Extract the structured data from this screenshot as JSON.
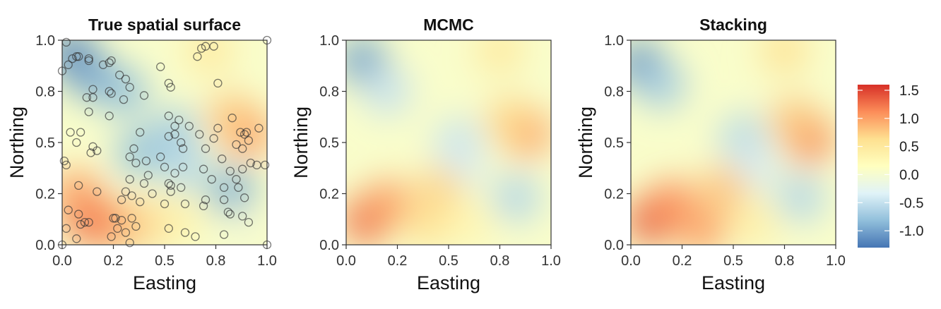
{
  "chart_data": [
    {
      "type": "heatmap",
      "id": "true",
      "title": "True spatial surface",
      "xlabel": "Easting",
      "ylabel": "Northing",
      "xlim": [
        0,
        1
      ],
      "ylim": [
        0,
        1
      ],
      "xticks": [
        "0.0",
        "0.2",
        "0.5",
        "0.8",
        "1.0"
      ],
      "yticks": [
        "0.0",
        "0.2",
        "0.5",
        "0.8",
        "1.0"
      ],
      "observed_locations": [
        [
          0.02,
          0.99
        ],
        [
          0.07,
          0.92
        ],
        [
          0.08,
          0.92
        ],
        [
          0.05,
          0.91
        ],
        [
          0.13,
          0.91
        ],
        [
          0.13,
          0.9
        ],
        [
          0.03,
          0.88
        ],
        [
          0.2,
          0.88
        ],
        [
          0.23,
          0.89
        ],
        [
          0.24,
          0.9
        ],
        [
          0.0,
          0.85
        ],
        [
          0.28,
          0.83
        ],
        [
          0.31,
          0.81
        ],
        [
          0.48,
          0.87
        ],
        [
          0.68,
          0.96
        ],
        [
          0.7,
          0.97
        ],
        [
          0.74,
          0.97
        ],
        [
          0.66,
          0.92
        ],
        [
          0.15,
          0.76
        ],
        [
          0.15,
          0.72
        ],
        [
          0.23,
          0.75
        ],
        [
          0.24,
          0.74
        ],
        [
          0.33,
          0.77
        ],
        [
          0.3,
          0.71
        ],
        [
          0.4,
          0.73
        ],
        [
          0.52,
          0.79
        ],
        [
          0.53,
          0.77
        ],
        [
          0.76,
          0.79
        ],
        [
          0.12,
          0.72
        ],
        [
          0.13,
          0.65
        ],
        [
          0.23,
          0.63
        ],
        [
          0.52,
          0.63
        ],
        [
          0.55,
          0.58
        ],
        [
          0.55,
          0.54
        ],
        [
          0.57,
          0.61
        ],
        [
          0.62,
          0.58
        ],
        [
          0.67,
          0.54
        ],
        [
          0.76,
          0.57
        ],
        [
          0.83,
          0.62
        ],
        [
          0.87,
          0.55
        ],
        [
          0.89,
          0.54
        ],
        [
          0.9,
          0.55
        ],
        [
          0.96,
          0.57
        ],
        [
          0.04,
          0.55
        ],
        [
          0.09,
          0.55
        ],
        [
          0.07,
          0.5
        ],
        [
          0.15,
          0.48
        ],
        [
          0.17,
          0.46
        ],
        [
          0.14,
          0.45
        ],
        [
          0.01,
          0.41
        ],
        [
          0.02,
          0.39
        ],
        [
          0.35,
          0.47
        ],
        [
          0.38,
          0.55
        ],
        [
          0.52,
          0.53
        ],
        [
          0.58,
          0.5
        ],
        [
          0.59,
          0.47
        ],
        [
          0.7,
          0.47
        ],
        [
          0.74,
          0.52
        ],
        [
          0.85,
          0.49
        ],
        [
          0.91,
          0.51
        ],
        [
          0.88,
          0.47
        ],
        [
          0.33,
          0.43
        ],
        [
          0.36,
          0.4
        ],
        [
          0.41,
          0.41
        ],
        [
          0.48,
          0.43
        ],
        [
          0.5,
          0.38
        ],
        [
          0.59,
          0.38
        ],
        [
          0.69,
          0.37
        ],
        [
          0.78,
          0.42
        ],
        [
          0.82,
          0.36
        ],
        [
          0.85,
          0.32
        ],
        [
          0.88,
          0.37
        ],
        [
          0.92,
          0.4
        ],
        [
          0.95,
          0.39
        ],
        [
          0.99,
          0.39
        ],
        [
          0.33,
          0.32
        ],
        [
          0.31,
          0.26
        ],
        [
          0.4,
          0.3
        ],
        [
          0.42,
          0.34
        ],
        [
          0.52,
          0.3
        ],
        [
          0.53,
          0.29
        ],
        [
          0.73,
          0.32
        ],
        [
          0.79,
          0.28
        ],
        [
          0.79,
          0.22
        ],
        [
          0.86,
          0.28
        ],
        [
          0.89,
          0.23
        ],
        [
          0.08,
          0.29
        ],
        [
          0.17,
          0.26
        ],
        [
          0.34,
          0.24
        ],
        [
          0.29,
          0.22
        ],
        [
          0.38,
          0.21
        ],
        [
          0.5,
          0.2
        ],
        [
          0.6,
          0.2
        ],
        [
          0.69,
          0.19
        ],
        [
          0.81,
          0.16
        ],
        [
          0.82,
          0.15
        ],
        [
          0.88,
          0.14
        ],
        [
          0.91,
          0.11
        ],
        [
          0.03,
          0.17
        ],
        [
          0.08,
          0.15
        ],
        [
          0.13,
          0.11
        ],
        [
          0.25,
          0.13
        ],
        [
          0.26,
          0.13
        ],
        [
          0.34,
          0.13
        ],
        [
          0.36,
          0.09
        ],
        [
          0.52,
          0.08
        ],
        [
          0.6,
          0.06
        ],
        [
          0.79,
          0.05
        ],
        [
          0.07,
          0.03
        ],
        [
          0.02,
          0.08
        ],
        [
          0.33,
          0.01
        ],
        [
          0.31,
          0.06
        ],
        [
          0.24,
          0.04
        ],
        [
          0.11,
          0.11
        ],
        [
          0.09,
          0.1
        ],
        [
          0.0,
          0.0
        ],
        [
          1.0,
          0.0
        ],
        [
          1.0,
          1.0
        ],
        [
          0.29,
          0.12
        ],
        [
          0.27,
          0.08
        ],
        [
          0.65,
          0.04
        ],
        [
          0.55,
          0.35
        ],
        [
          0.58,
          0.28
        ],
        [
          0.44,
          0.25
        ],
        [
          0.7,
          0.22
        ],
        [
          0.53,
          0.26
        ]
      ],
      "surface_features": [
        {
          "x": 0.05,
          "y": 0.93,
          "value": -1.2
        },
        {
          "x": 0.15,
          "y": 0.82,
          "value": -1.0
        },
        {
          "x": 0.3,
          "y": 0.75,
          "value": -0.8
        },
        {
          "x": 0.55,
          "y": 0.55,
          "value": -0.7
        },
        {
          "x": 0.38,
          "y": 0.45,
          "value": -0.8
        },
        {
          "x": 0.6,
          "y": 0.38,
          "value": -0.6
        },
        {
          "x": 0.83,
          "y": 0.26,
          "value": -0.9
        },
        {
          "x": 0.9,
          "y": 0.55,
          "value": 1.1
        },
        {
          "x": 0.83,
          "y": 0.62,
          "value": 0.8
        },
        {
          "x": 0.72,
          "y": 0.95,
          "value": 0.5
        },
        {
          "x": 0.12,
          "y": 0.14,
          "value": 1.4
        },
        {
          "x": 0.2,
          "y": 0.1,
          "value": 1.2
        },
        {
          "x": 0.07,
          "y": 0.25,
          "value": 1.0
        },
        {
          "x": 0.38,
          "y": 0.1,
          "value": 0.8
        },
        {
          "x": 0.55,
          "y": 0.12,
          "value": 0.4
        },
        {
          "x": 0.9,
          "y": 0.05,
          "value": 0.0
        }
      ]
    },
    {
      "type": "heatmap",
      "id": "mcmc",
      "title": "MCMC",
      "xlabel": "Easting",
      "ylabel": "Northing",
      "xlim": [
        0,
        1
      ],
      "ylim": [
        0,
        1
      ],
      "xticks": [
        "0.0",
        "0.2",
        "0.5",
        "0.8",
        "1.0"
      ],
      "yticks": [
        "0.0",
        "0.2",
        "0.5",
        "0.8",
        "1.0"
      ],
      "surface_features": [
        {
          "x": 0.08,
          "y": 0.9,
          "value": -1.0
        },
        {
          "x": 0.2,
          "y": 0.75,
          "value": -0.5
        },
        {
          "x": 0.55,
          "y": 0.5,
          "value": -0.5
        },
        {
          "x": 0.55,
          "y": 0.38,
          "value": -0.4
        },
        {
          "x": 0.83,
          "y": 0.23,
          "value": -0.6
        },
        {
          "x": 0.88,
          "y": 0.55,
          "value": 1.1
        },
        {
          "x": 0.8,
          "y": 0.6,
          "value": 0.7
        },
        {
          "x": 0.75,
          "y": 0.95,
          "value": 0.5
        },
        {
          "x": 0.1,
          "y": 0.12,
          "value": 1.3
        },
        {
          "x": 0.2,
          "y": 0.2,
          "value": 1.0
        },
        {
          "x": 0.4,
          "y": 0.1,
          "value": 0.6
        },
        {
          "x": 0.45,
          "y": 0.27,
          "value": 0.7
        },
        {
          "x": 0.6,
          "y": 0.1,
          "value": 0.3
        }
      ]
    },
    {
      "type": "heatmap",
      "id": "stacking",
      "title": "Stacking",
      "xlabel": "Easting",
      "ylabel": "Northing",
      "xlim": [
        0,
        1
      ],
      "ylim": [
        0,
        1
      ],
      "xticks": [
        "0.0",
        "0.2",
        "0.5",
        "0.8",
        "1.0"
      ],
      "yticks": [
        "0.0",
        "0.2",
        "0.5",
        "0.8",
        "1.0"
      ],
      "surface_features": [
        {
          "x": 0.05,
          "y": 0.88,
          "value": -1.1
        },
        {
          "x": 0.15,
          "y": 0.78,
          "value": -0.7
        },
        {
          "x": 0.55,
          "y": 0.52,
          "value": -0.6
        },
        {
          "x": 0.6,
          "y": 0.38,
          "value": -0.4
        },
        {
          "x": 0.83,
          "y": 0.23,
          "value": -0.6
        },
        {
          "x": 0.87,
          "y": 0.52,
          "value": 1.2
        },
        {
          "x": 0.8,
          "y": 0.6,
          "value": 0.8
        },
        {
          "x": 0.75,
          "y": 0.95,
          "value": 0.6
        },
        {
          "x": 0.1,
          "y": 0.12,
          "value": 1.4
        },
        {
          "x": 0.2,
          "y": 0.2,
          "value": 1.1
        },
        {
          "x": 0.35,
          "y": 0.07,
          "value": 1.0
        },
        {
          "x": 0.45,
          "y": 0.27,
          "value": 0.8
        },
        {
          "x": 0.6,
          "y": 0.1,
          "value": 0.4
        }
      ]
    }
  ],
  "colorbar": {
    "ticks": [
      "1.5",
      "1.0",
      "0.5",
      "0.0",
      "-0.5",
      "-1.0"
    ],
    "tick_values": [
      1.5,
      1.0,
      0.5,
      0.0,
      -0.5,
      -1.0
    ],
    "range": [
      -1.3,
      1.6
    ],
    "palette": [
      "#4575b4",
      "#91bfdb",
      "#e0f3f8",
      "#ffffbf",
      "#fee090",
      "#fc8d59",
      "#d73027"
    ]
  },
  "style": {
    "point_stroke": "#333333",
    "axis_color": "#333333"
  }
}
